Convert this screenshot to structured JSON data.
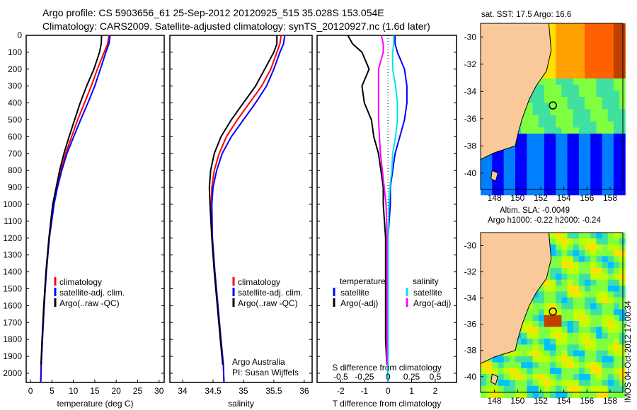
{
  "title": {
    "line1": "Argo profile: CS 5903656_61 25-Sep-2012 20120925_515 35.028S 153.054E",
    "line2": "Climatology: CARS2009. Satellite-adjusted climatology: synTS_20120927.nc (1.6d later)"
  },
  "colors": {
    "clim": "#ff0000",
    "sat": "#0000ff",
    "argo": "#000000",
    "sal_sat": "#00e5e5",
    "sal_argo": "#ff00ff",
    "land": "#f9c99a"
  },
  "chart_data": [
    {
      "type": "line",
      "xlabel": "temperature (deg C)",
      "ylabel": "",
      "xlim": [
        -1,
        31.2
      ],
      "ylim": [
        2050,
        0
      ],
      "xticks": [
        "0",
        "5",
        "10",
        "15",
        "20",
        "25",
        "30"
      ],
      "xtick_vals": [
        0,
        5,
        10,
        15,
        20,
        25,
        30
      ],
      "yticks": [
        "0",
        "100",
        "200",
        "300",
        "400",
        "500",
        "600",
        "700",
        "800",
        "900",
        "1000",
        "1100",
        "1200",
        "1300",
        "1400",
        "1500",
        "1600",
        "1700",
        "1800",
        "1900",
        "2000"
      ],
      "depth": [
        0,
        50,
        100,
        200,
        300,
        400,
        500,
        600,
        700,
        800,
        900,
        1000,
        1200,
        1400,
        1600,
        1800,
        1950,
        2050
      ],
      "series": [
        {
          "name": "climatology",
          "values": [
            18.3,
            18,
            17.2,
            15.6,
            14.2,
            12.6,
            11,
            9.6,
            8.2,
            7.1,
            6.2,
            5.4,
            4.4,
            3.7,
            3.2,
            2.8,
            2.5,
            2.4
          ]
        },
        {
          "name": "satellite-adj. clim.",
          "values": [
            18.6,
            18.3,
            17.6,
            16.3,
            15,
            13.4,
            11.7,
            10.1,
            8.5,
            7.3,
            6.3,
            5.5,
            4.4,
            3.7,
            3.2,
            2.8,
            2.5,
            2.4
          ]
        },
        {
          "name": "Argo(..raw -QC)",
          "values": [
            16.6,
            16.5,
            16.1,
            14.8,
            13.1,
            11.6,
            10.3,
            9,
            7.8,
            6.8,
            6,
            5.2,
            4.3,
            3.6,
            3.1,
            2.7,
            2.45,
            null
          ]
        }
      ],
      "legend": [
        "climatology",
        "satellite-adj. clim.",
        "Argo(..raw -QC)"
      ]
    },
    {
      "type": "line",
      "xlabel": "salinity",
      "xlim": [
        33.79,
        36.13
      ],
      "ylim": [
        2050,
        0
      ],
      "xticks": [
        "34",
        "34.5",
        "35",
        "35.5",
        "36"
      ],
      "xtick_vals": [
        34,
        34.5,
        35,
        35.5,
        36
      ],
      "depth": [
        0,
        50,
        100,
        200,
        300,
        400,
        500,
        600,
        700,
        800,
        900,
        1000,
        1200,
        1400,
        1600,
        1800,
        1950,
        2050
      ],
      "series": [
        {
          "name": "climatology",
          "values": [
            35.62,
            35.6,
            35.55,
            35.45,
            35.3,
            35.1,
            34.9,
            34.72,
            34.6,
            34.52,
            34.48,
            34.47,
            34.49,
            34.53,
            34.58,
            34.63,
            34.67,
            34.68
          ]
        },
        {
          "name": "satellite-adj. clim.",
          "values": [
            35.68,
            35.66,
            35.6,
            35.5,
            35.38,
            35.2,
            35,
            34.8,
            34.65,
            34.56,
            34.5,
            34.48,
            34.49,
            34.53,
            34.58,
            34.63,
            34.67,
            34.68
          ]
        },
        {
          "name": "Argo(..raw -QC)",
          "values": [
            35.55,
            35.55,
            35.5,
            35.35,
            35.2,
            35,
            34.8,
            34.63,
            34.52,
            34.46,
            34.44,
            34.45,
            34.48,
            34.52,
            34.57,
            34.62,
            34.66,
            null
          ]
        }
      ],
      "legend": [
        "climatology",
        "satellite-adj. clim.",
        "Argo(..raw -QC)"
      ],
      "annotation": [
        "Argo Australia",
        "PI: Susan Wijffels"
      ]
    },
    {
      "type": "line",
      "xlabel": "T difference from climatology",
      "x2label": "S difference from climatology",
      "xlim": [
        -3,
        2.9
      ],
      "ylim": [
        2050,
        0
      ],
      "xticks": [
        "-2",
        "-1",
        "0",
        "1",
        "2"
      ],
      "xtick_vals": [
        -2,
        -1,
        0,
        1,
        2
      ],
      "x2ticks": [
        "-0.5",
        "-0.25",
        "0",
        "0.25",
        "0.5"
      ],
      "x2tick_vals": [
        -0.5,
        -0.25,
        0,
        0.25,
        0.5
      ],
      "legend_t": {
        "head": "temperature",
        "items": [
          "satellite",
          "Argo(-adj)"
        ]
      },
      "legend_s": {
        "head": "salinity",
        "items": [
          "satellite",
          "Argo(-adj)"
        ]
      }
    }
  ],
  "map1": {
    "title": "sat. SST: 17.5  Argo: 16.6",
    "lon_ticks": [
      "148",
      "150",
      "152",
      "154",
      "156",
      "158"
    ],
    "lat_ticks": [
      "-30",
      "-32",
      "-34",
      "-36",
      "-38",
      "-40"
    ],
    "float": [
      153.05,
      -35.03
    ]
  },
  "map2": {
    "title1": "Altim. SLA: -0.0049",
    "title2": "Argo h1000: -0.22  h2000: -0.24",
    "lon_ticks": [
      "148",
      "150",
      "152",
      "154",
      "156",
      "158"
    ],
    "lat_ticks": [
      "-30",
      "-32",
      "-34",
      "-36",
      "-38",
      "-40"
    ]
  },
  "footer": "IMOS 04-Oct-2012 17:00:34"
}
